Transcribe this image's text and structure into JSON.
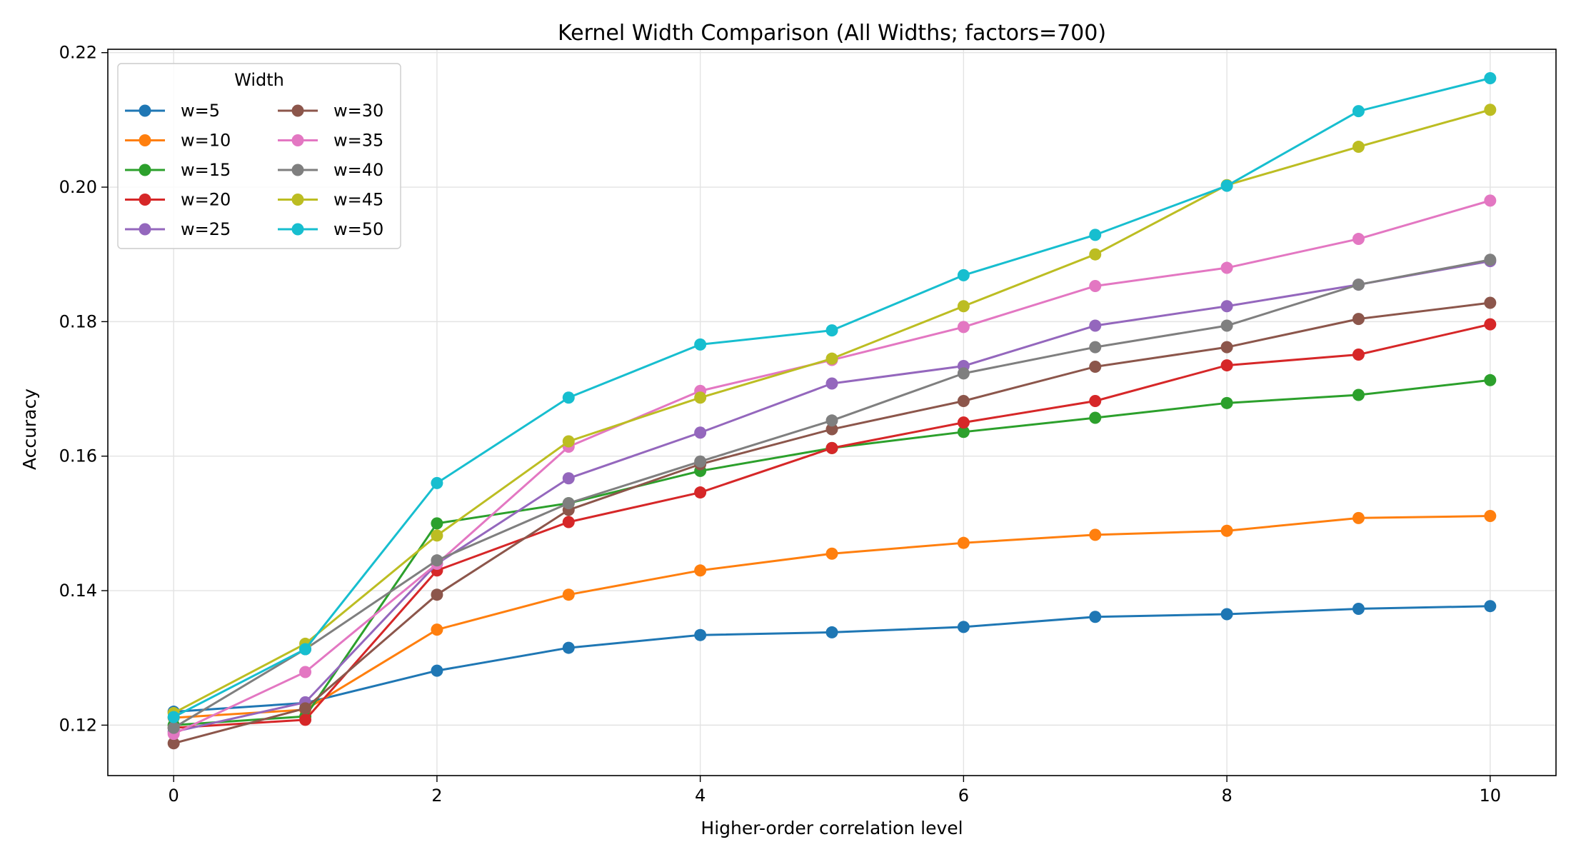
{
  "chart_data": {
    "type": "line",
    "title": "Kernel Width Comparison (All Widths; factors=700)",
    "xlabel": "Higher-order correlation level",
    "ylabel": "Accuracy",
    "xlim": [
      -0.5,
      10.5
    ],
    "ylim": [
      0.1125,
      0.2205
    ],
    "xticks": [
      0,
      2,
      4,
      6,
      8,
      10
    ],
    "xtick_labels": [
      "0",
      "2",
      "4",
      "6",
      "8",
      "10"
    ],
    "yticks": [
      0.12,
      0.14,
      0.16,
      0.18,
      0.2,
      0.22
    ],
    "ytick_labels": [
      "0.12",
      "0.14",
      "0.16",
      "0.18",
      "0.20",
      "0.22"
    ],
    "grid": true,
    "legend": {
      "title": "Width",
      "placement": "upper-left",
      "columns": 2
    },
    "x": [
      0,
      1,
      2,
      3,
      4,
      5,
      6,
      7,
      8,
      9,
      10
    ],
    "series": [
      {
        "name": "w=5",
        "color": "#1f77b4",
        "values": [
          0.122,
          0.1233,
          0.1281,
          0.1315,
          0.1334,
          0.1338,
          0.1346,
          0.1361,
          0.1365,
          0.1373,
          0.1377
        ]
      },
      {
        "name": "w=10",
        "color": "#ff7f0e",
        "values": [
          0.1211,
          0.1223,
          0.1342,
          0.1394,
          0.143,
          0.1455,
          0.1471,
          0.1483,
          0.1489,
          0.1508,
          0.1511
        ]
      },
      {
        "name": "w=15",
        "color": "#2ca02c",
        "values": [
          0.12,
          0.1213,
          0.15,
          0.153,
          0.1578,
          0.1612,
          0.1636,
          0.1657,
          0.1679,
          0.1691,
          0.1713
        ]
      },
      {
        "name": "w=20",
        "color": "#d62728",
        "values": [
          0.1196,
          0.1208,
          0.143,
          0.1502,
          0.1546,
          0.1612,
          0.165,
          0.1682,
          0.1735,
          0.1751,
          0.1796
        ]
      },
      {
        "name": "w=25",
        "color": "#9467bd",
        "values": [
          0.119,
          0.1234,
          0.144,
          0.1567,
          0.1635,
          0.1708,
          0.1734,
          0.1794,
          0.1823,
          0.1855,
          0.189
        ]
      },
      {
        "name": "w=30",
        "color": "#8c564b",
        "values": [
          0.1173,
          0.1225,
          0.1394,
          0.152,
          0.1588,
          0.164,
          0.1682,
          0.1733,
          0.1762,
          0.1804,
          0.1828
        ]
      },
      {
        "name": "w=35",
        "color": "#e377c2",
        "values": [
          0.1187,
          0.1279,
          0.144,
          0.1614,
          0.1697,
          0.1743,
          0.1792,
          0.1853,
          0.188,
          0.1923,
          0.198
        ]
      },
      {
        "name": "w=40",
        "color": "#7f7f7f",
        "values": [
          0.1196,
          0.1313,
          0.1445,
          0.153,
          0.1592,
          0.1653,
          0.1723,
          0.1762,
          0.1794,
          0.1855,
          0.1892
        ]
      },
      {
        "name": "w=45",
        "color": "#bcbd22",
        "values": [
          0.1218,
          0.1321,
          0.1482,
          0.1622,
          0.1687,
          0.1745,
          0.1823,
          0.19,
          0.2003,
          0.206,
          0.2115
        ]
      },
      {
        "name": "w=50",
        "color": "#17becf",
        "values": [
          0.1212,
          0.1313,
          0.156,
          0.1687,
          0.1766,
          0.1787,
          0.1869,
          0.1929,
          0.2002,
          0.2113,
          0.2162
        ]
      }
    ]
  }
}
